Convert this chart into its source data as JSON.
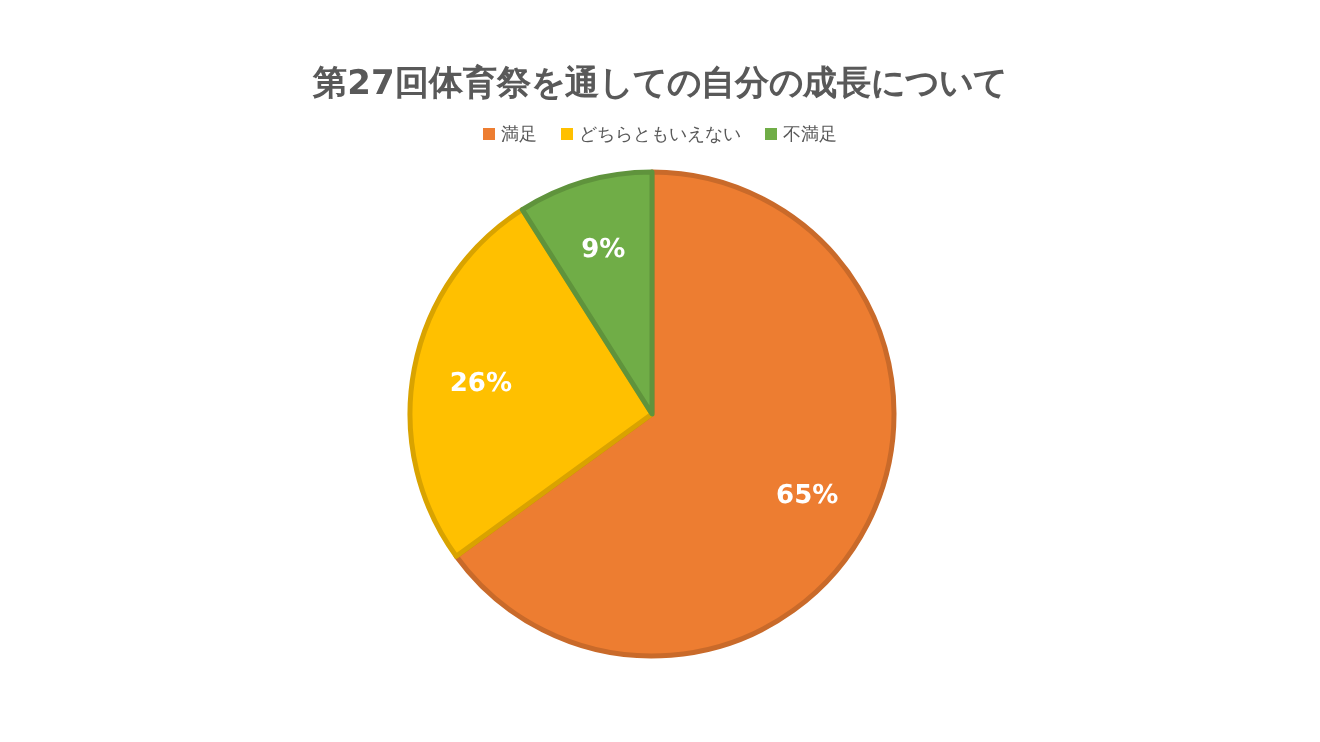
{
  "chart_data": {
    "type": "pie",
    "title": "第27回体育祭を通しての自分の成長について",
    "categories": [
      "満足",
      "どちらともいえない",
      "不満足"
    ],
    "values": [
      65,
      26,
      9
    ],
    "colors": [
      "#ed7d31",
      "#ffc000",
      "#70ad47"
    ],
    "value_labels": [
      "65%",
      "26%",
      "9%"
    ],
    "legend": "top"
  }
}
